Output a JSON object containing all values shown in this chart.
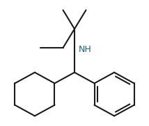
{
  "bg_color": "#ffffff",
  "line_color": "#1a1a1a",
  "line_width": 1.5,
  "nh_text": "NH",
  "nh_fontsize": 9,
  "nh_color": "#1a6080",
  "fig_width": 2.14,
  "fig_height": 1.82,
  "dpi": 100
}
